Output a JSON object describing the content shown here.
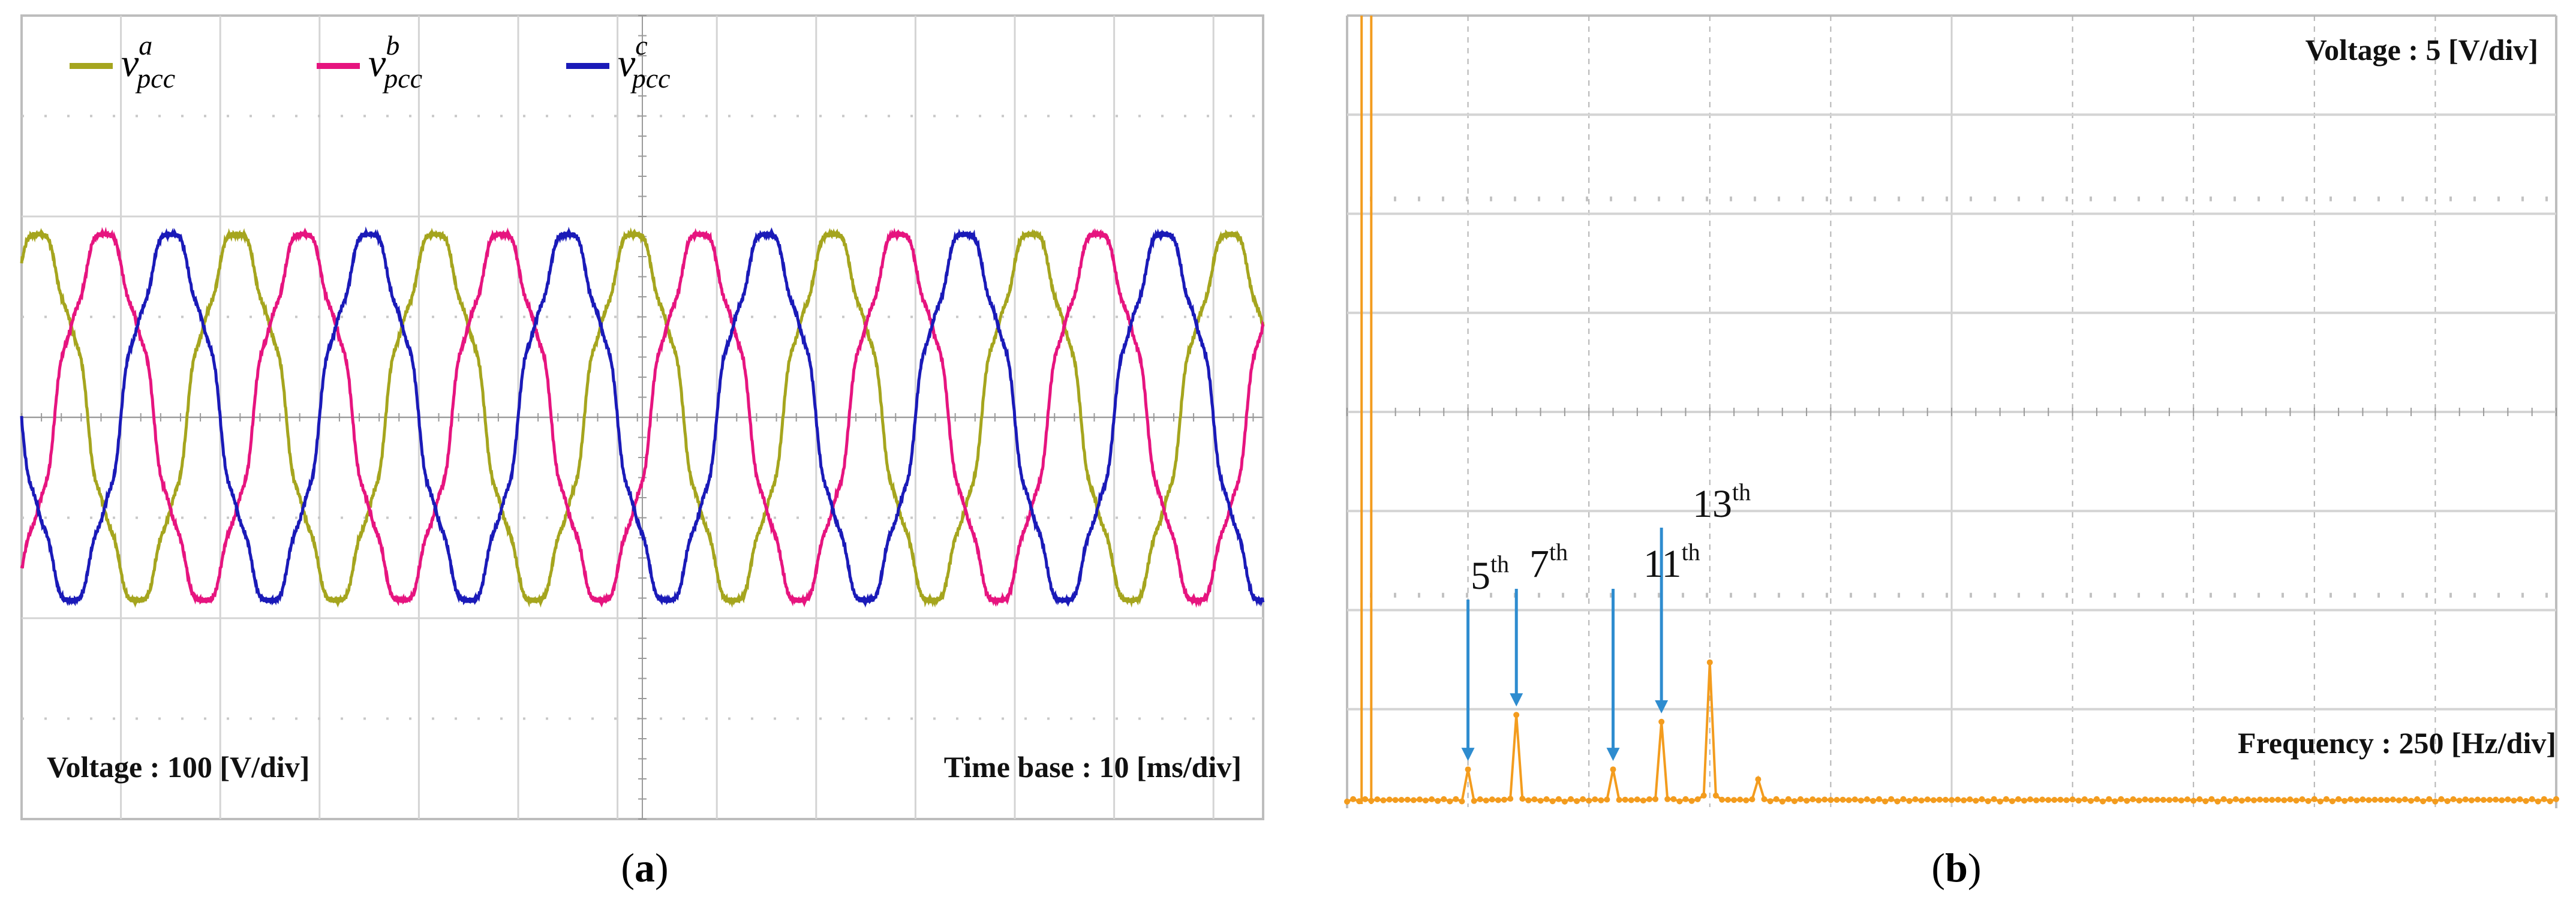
{
  "panels": {
    "a": {
      "caption_letter": "a"
    },
    "b": {
      "caption_letter": "b"
    }
  },
  "chart_data": [
    {
      "type": "line",
      "title": "",
      "legend_position": "top-left",
      "grid": true,
      "annotations": {
        "voltage_scale": "Voltage : 100 [V/div]",
        "time_base": "Time base : 10 [ms/div]"
      },
      "voltage_per_div_V": 100,
      "time_per_div_ms": 10,
      "xlim_div": [
        0,
        12.5
      ],
      "ylim_div": [
        -4,
        4
      ],
      "fundamental_hz": 50,
      "peak_amplitude_V": 190,
      "series": [
        {
          "name": "v_pcc^a",
          "symbol": "v",
          "sub": "pcc",
          "sup": "a",
          "color": "#a5a51e",
          "phase_deg": 0
        },
        {
          "name": "v_pcc^b",
          "symbol": "v",
          "sub": "pcc",
          "sup": "b",
          "color": "#e6147f",
          "phase_deg": -120
        },
        {
          "name": "v_pcc^c",
          "symbol": "v",
          "sub": "pcc",
          "sup": "c",
          "color": "#1a1ab8",
          "phase_deg": 120
        }
      ]
    },
    {
      "type": "line",
      "title": "",
      "grid": true,
      "annotations": {
        "voltage_scale": "Voltage : 5 [V/div]",
        "frequency_scale": "Frequency : 250 [Hz/div]"
      },
      "voltage_per_div_V": 5,
      "frequency_per_div_Hz": 250,
      "xlim_div": [
        0,
        10
      ],
      "ylim_div": [
        0,
        8
      ],
      "color": "#f39c1e",
      "harmonic_labels": [
        {
          "order": "5",
          "suffix": "th",
          "frequency_hz": 250
        },
        {
          "order": "7",
          "suffix": "th",
          "frequency_hz": 350
        },
        {
          "order": "11",
          "suffix": "th",
          "frequency_hz": 550
        },
        {
          "order": "13",
          "suffix": "th",
          "frequency_hz": 650
        }
      ],
      "spectrum_peaks": [
        {
          "frequency_hz": 50,
          "amplitude_div": 8
        },
        {
          "frequency_hz": 250,
          "amplitude_div": 0.35
        },
        {
          "frequency_hz": 350,
          "amplitude_div": 0.9
        },
        {
          "frequency_hz": 550,
          "amplitude_div": 0.35
        },
        {
          "frequency_hz": 650,
          "amplitude_div": 0.83
        },
        {
          "frequency_hz": 750,
          "amplitude_div": 1.43
        },
        {
          "frequency_hz": 850,
          "amplitude_div": 0.25
        }
      ],
      "noise_floor_div": 0.05
    }
  ]
}
